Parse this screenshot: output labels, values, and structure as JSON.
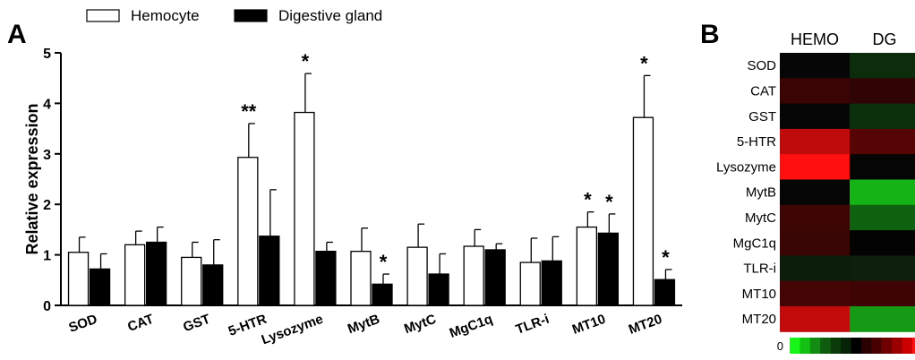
{
  "chart_data": [
    {
      "type": "bar",
      "panel_label": "A",
      "ylabel": "Relative expression",
      "ylim": [
        0,
        5
      ],
      "yticks": [
        "0",
        "1",
        "2",
        "3",
        "4",
        "5"
      ],
      "categories": [
        "SOD",
        "CAT",
        "GST",
        "5-HTR",
        "Lysozyme",
        "MytB",
        "MytC",
        "MgC1q",
        "TLR-i",
        "MT10",
        "MT20"
      ],
      "legend_position": "top",
      "series": [
        {
          "name": "Hemocyte",
          "color": "#ffffff",
          "values": [
            1.05,
            1.2,
            0.95,
            2.93,
            3.82,
            1.07,
            1.15,
            1.17,
            0.85,
            1.55,
            3.72
          ],
          "errors": [
            0.3,
            0.27,
            0.3,
            0.67,
            0.77,
            0.46,
            0.46,
            0.33,
            0.48,
            0.3,
            0.83
          ],
          "marks": [
            "",
            "",
            "",
            "**",
            "*",
            "",
            "",
            "",
            "",
            "*",
            "*"
          ]
        },
        {
          "name": "Digestive gland",
          "color": "#000000",
          "values": [
            0.72,
            1.25,
            0.8,
            1.37,
            1.07,
            0.42,
            0.62,
            1.1,
            0.88,
            1.43,
            0.51
          ],
          "errors": [
            0.3,
            0.3,
            0.5,
            0.92,
            0.18,
            0.2,
            0.4,
            0.12,
            0.48,
            0.38,
            0.2
          ],
          "marks": [
            "",
            "",
            "",
            "",
            "",
            "*",
            "",
            "",
            "",
            "*",
            "*"
          ]
        }
      ]
    },
    {
      "type": "heatmap",
      "panel_label": "B",
      "columns": [
        "HEMO",
        "DG"
      ],
      "rows": [
        "SOD",
        "CAT",
        "GST",
        "5-HTR",
        "Lysozyme",
        "MytB",
        "MytC",
        "MgC1q",
        "TLR-i",
        "MT10",
        "MT20"
      ],
      "cell_colors": [
        [
          "#060606",
          "#0c2c0c"
        ],
        [
          "#3a0404",
          "#300404"
        ],
        [
          "#060606",
          "#0c300c"
        ],
        [
          "#bf0b0b",
          "#560505"
        ],
        [
          "#ff0f0f",
          "#050505"
        ],
        [
          "#050505",
          "#16b316"
        ],
        [
          "#3e0505",
          "#0f620f"
        ],
        [
          "#3a0505",
          "#030303"
        ],
        [
          "#0c1d0c",
          "#0d1f0d"
        ],
        [
          "#450505",
          "#3e0404"
        ],
        [
          "#c40b0b",
          "#159a15"
        ]
      ],
      "color_scale": {
        "min_label": "0",
        "colors": [
          "#18f518",
          "#15c015",
          "#128c12",
          "#0f5c0f",
          "#0b3b0b",
          "#082208",
          "#000000",
          "#2a0000",
          "#4a0000",
          "#6e0000",
          "#9a0000",
          "#cc0000",
          "#ff1414"
        ]
      }
    }
  ]
}
